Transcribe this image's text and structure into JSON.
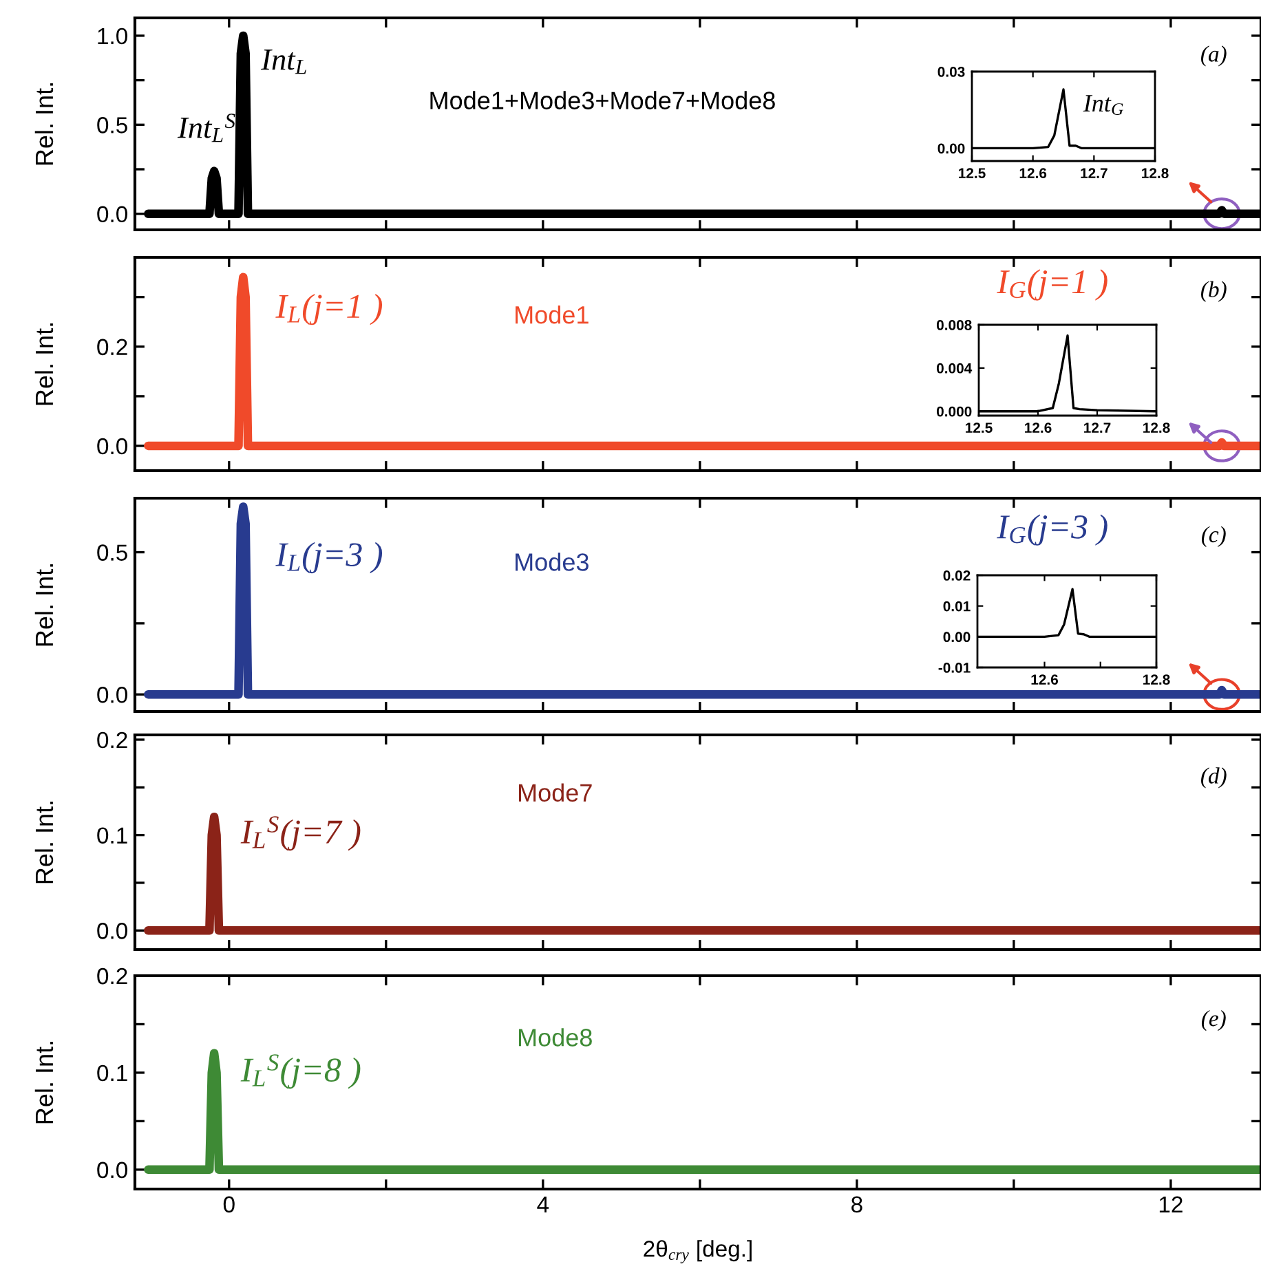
{
  "chart_data": [
    {
      "type": "line",
      "ylabel": "Rel. Int.",
      "xlim": [
        -1.2,
        13.15
      ],
      "ylim": [
        -0.09,
        1.1
      ],
      "tick_labels": "y",
      "xticks": [
        0,
        {
          "value": 2,
          "label": null
        },
        4,
        {
          "value": 6,
          "label": null
        },
        8,
        {
          "value": 10,
          "label": null
        },
        12
      ],
      "yticks": [
        {
          "value": 0,
          "label": "0.0"
        },
        {
          "value": 0.25,
          "label": null
        },
        {
          "value": 0.5,
          "label": "0.5"
        },
        {
          "value": 0.75,
          "label": null
        },
        {
          "value": 1.0,
          "label": "1.0"
        }
      ],
      "series": [
        {
          "color": "#000000",
          "x": [
            -1.03,
            -0.25,
            -0.22,
            -0.19,
            -0.16,
            -0.13,
            0.12,
            0.15,
            0.18,
            0.21,
            0.24,
            12.55,
            12.62,
            12.65,
            12.68,
            13.15
          ],
          "values": [
            0,
            0,
            0.2,
            0.24,
            0.2,
            0,
            0,
            0.9,
            1.0,
            0.9,
            0,
            0,
            0,
            0.02,
            0,
            0
          ]
        }
      ],
      "annotations": [
        "Int$_{L}$$^{S}$",
        "Int$_{L}$",
        "Mode1+Mode3+Mode7+Mode8",
        "(a)"
      ]
    },
    {
      "type": "line",
      "xlim": [
        12.5,
        12.8
      ],
      "ylim": [
        -0.005,
        0.03
      ],
      "xticks": [
        {
          "value": 12.5,
          "label": "12.5"
        },
        {
          "value": 12.6,
          "label": "12.6"
        },
        {
          "value": 12.7,
          "label": "12.7"
        },
        {
          "value": 12.8,
          "label": "12.8"
        }
      ],
      "yticks": [
        {
          "value": 0,
          "label": "0.00"
        },
        {
          "value": 0.03,
          "label": "0.03"
        }
      ],
      "series": [
        {
          "color": "#000000",
          "x": [
            12.5,
            12.6,
            12.625,
            12.635,
            12.65,
            12.66,
            12.67,
            12.68,
            12.8
          ],
          "values": [
            0,
            0,
            0.0005,
            0.005,
            0.023,
            0.001,
            0.001,
            0,
            0
          ]
        }
      ],
      "annotations": [
        "Int$_{G}$"
      ]
    },
    {
      "type": "line",
      "ylabel": "Rel. Int.",
      "xlim": [
        -1.2,
        13.15
      ],
      "ylim": [
        -0.05,
        0.38
      ],
      "tick_labels": "y",
      "xticks": [
        0,
        {
          "value": 2,
          "label": null
        },
        4,
        {
          "value": 6,
          "label": null
        },
        8,
        {
          "value": 10,
          "label": null
        },
        12
      ],
      "yticks": [
        {
          "value": 0,
          "label": "0.0"
        },
        {
          "value": 0.1,
          "label": null
        },
        {
          "value": 0.2,
          "label": "0.2"
        },
        {
          "value": 0.3,
          "label": null
        }
      ],
      "series": [
        {
          "color": "#f04a2a",
          "x": [
            -1.03,
            0.12,
            0.15,
            0.18,
            0.21,
            0.24,
            12.55,
            12.62,
            12.65,
            12.68,
            13.15
          ],
          "values": [
            0,
            0,
            0.3,
            0.34,
            0.3,
            0,
            0,
            0,
            0.007,
            0,
            0
          ]
        }
      ],
      "annotations": [
        "I$_{L}$(j=1 )",
        "Mode1",
        "I$_{G}$(j=1 )",
        "(b)"
      ]
    },
    {
      "type": "line",
      "xlim": [
        12.5,
        12.8
      ],
      "ylim": [
        -0.0004,
        0.008
      ],
      "xticks": [
        {
          "value": 12.5,
          "label": "12.5"
        },
        {
          "value": 12.6,
          "label": "12.6"
        },
        {
          "value": 12.7,
          "label": "12.7"
        },
        {
          "value": 12.8,
          "label": "12.8"
        }
      ],
      "yticks": [
        {
          "value": 0,
          "label": "0.000"
        },
        {
          "value": 0.004,
          "label": "0.004"
        },
        {
          "value": 0.008,
          "label": "0.008"
        }
      ],
      "series": [
        {
          "color": "#000000",
          "x": [
            12.5,
            12.6,
            12.625,
            12.635,
            12.65,
            12.66,
            12.67,
            12.7,
            12.8
          ],
          "values": [
            0,
            0,
            0.0003,
            0.0025,
            0.007,
            0.0003,
            0.0002,
            0.0001,
            0
          ]
        }
      ]
    },
    {
      "type": "line",
      "ylabel": "Rel. Int.",
      "xlim": [
        -1.2,
        13.15
      ],
      "ylim": [
        -0.06,
        0.69
      ],
      "tick_labels": "y",
      "xticks": [
        0,
        {
          "value": 2,
          "label": null
        },
        4,
        {
          "value": 6,
          "label": null
        },
        8,
        {
          "value": 10,
          "label": null
        },
        12
      ],
      "yticks": [
        {
          "value": 0,
          "label": "0.0"
        },
        {
          "value": 0.25,
          "label": null
        },
        {
          "value": 0.5,
          "label": "0.5"
        }
      ],
      "series": [
        {
          "color": "#283b8f",
          "x": [
            -1.03,
            0.12,
            0.15,
            0.18,
            0.21,
            0.24,
            12.55,
            12.62,
            12.65,
            12.68,
            13.15
          ],
          "values": [
            0,
            0,
            0.6,
            0.66,
            0.6,
            0,
            0,
            0,
            0.015,
            0,
            0
          ]
        }
      ],
      "annotations": [
        "I$_{L}$(j=3 )",
        "Mode3",
        "I$_{G}$(j=3 )",
        "(c)"
      ]
    },
    {
      "type": "line",
      "xlim": [
        12.48,
        12.8
      ],
      "ylim": [
        -0.01,
        0.02
      ],
      "xticks": [
        {
          "value": 12.6,
          "label": "12.6"
        },
        {
          "value": 12.7,
          "label": null
        },
        {
          "value": 12.8,
          "label": "12.8"
        }
      ],
      "yticks": [
        {
          "value": -0.01,
          "label": "-0.01"
        },
        {
          "value": 0,
          "label": "0.00"
        },
        {
          "value": 0.01,
          "label": "0.01"
        },
        {
          "value": 0.02,
          "label": "0.02"
        }
      ],
      "series": [
        {
          "color": "#000000",
          "x": [
            12.48,
            12.6,
            12.625,
            12.635,
            12.65,
            12.66,
            12.67,
            12.68,
            12.8
          ],
          "values": [
            0,
            0,
            0.0005,
            0.004,
            0.0155,
            0.001,
            0.0008,
            0,
            0
          ]
        }
      ]
    },
    {
      "type": "line",
      "ylabel": "Rel. Int.",
      "xlim": [
        -1.2,
        13.15
      ],
      "ylim": [
        -0.02,
        0.205
      ],
      "tick_labels": "y",
      "xticks": [
        0,
        {
          "value": 2,
          "label": null
        },
        4,
        {
          "value": 6,
          "label": null
        },
        8,
        {
          "value": 10,
          "label": null
        },
        12
      ],
      "yticks": [
        {
          "value": 0,
          "label": "0.0"
        },
        {
          "value": 0.05,
          "label": null
        },
        {
          "value": 0.1,
          "label": "0.1"
        },
        {
          "value": 0.15,
          "label": null
        },
        {
          "value": 0.2,
          "label": "0.2"
        }
      ],
      "series": [
        {
          "color": "#8b2318",
          "x": [
            -1.03,
            -0.25,
            -0.22,
            -0.19,
            -0.16,
            -0.13,
            13.15
          ],
          "values": [
            0,
            0,
            0.1,
            0.119,
            0.1,
            0,
            0
          ]
        }
      ],
      "annotations": [
        "Mode7",
        "I$_{L}$$^{S}$(j=7 )",
        "(d)"
      ]
    },
    {
      "type": "line",
      "ylabel": "Rel. Int.",
      "xlabel": "2θ$_{cry}$ [deg.]",
      "xlim": [
        -1.2,
        13.15
      ],
      "ylim": [
        -0.02,
        0.2
      ],
      "xticks": [
        0,
        {
          "value": 2,
          "label": null
        },
        4,
        {
          "value": 6,
          "label": null
        },
        8,
        {
          "value": 10,
          "label": null
        },
        12
      ],
      "yticks": [
        {
          "value": 0,
          "label": "0.0"
        },
        {
          "value": 0.05,
          "label": null
        },
        {
          "value": 0.1,
          "label": "0.1"
        },
        {
          "value": 0.15,
          "label": null
        },
        {
          "value": 0.2,
          "label": "0.2"
        }
      ],
      "series": [
        {
          "color": "#3e8a35",
          "x": [
            -1.03,
            -0.25,
            -0.22,
            -0.19,
            -0.16,
            -0.13,
            13.15
          ],
          "values": [
            0,
            0,
            0.1,
            0.12,
            0.1,
            0,
            0
          ]
        }
      ],
      "annotations": [
        "Mode8",
        "I$_{L}$$^{S}$(j=8 )",
        "(e)"
      ]
    }
  ]
}
